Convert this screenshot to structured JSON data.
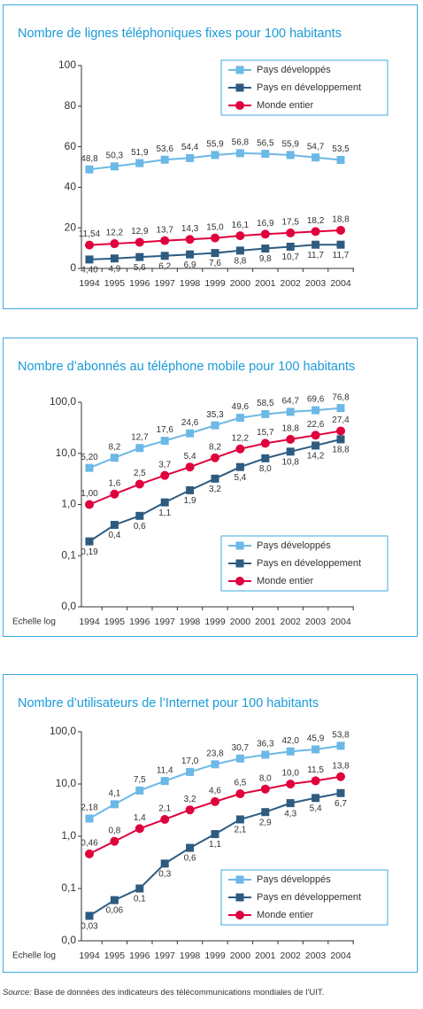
{
  "chart_data": [
    {
      "type": "line",
      "title": "Nombre de lignes téléphoniques fixes pour 100 habitants",
      "categories": [
        "1994",
        "1995",
        "1996",
        "1997",
        "1998",
        "1999",
        "2000",
        "2001",
        "2002",
        "2003",
        "2004"
      ],
      "ylim": [
        0,
        100
      ],
      "yticks": [
        0,
        20,
        40,
        60,
        80,
        100
      ],
      "log_scale": false,
      "grid": false,
      "legend": "top-right",
      "series": [
        {
          "name": "Pays développés",
          "color": "#6cb8e6",
          "marker": "square",
          "values": [
            48.8,
            50.3,
            51.9,
            53.6,
            54.4,
            55.9,
            56.8,
            56.5,
            55.9,
            54.7,
            53.5
          ],
          "value_labels": [
            "48,8",
            "50,3",
            "51,9",
            "53,6",
            "54,4",
            "55,9",
            "56,8",
            "56,5",
            "55,9",
            "54,7",
            "53,5"
          ]
        },
        {
          "name": "Pays en développement",
          "color": "#2e5b80",
          "marker": "square",
          "values": [
            4.4,
            4.9,
            5.6,
            6.2,
            6.9,
            7.6,
            8.8,
            9.8,
            10.7,
            11.7,
            11.7
          ],
          "value_labels": [
            "4,40",
            "4,9",
            "5,6",
            "6,2",
            "6,9",
            "7,6",
            "8,8",
            "9,8",
            "10,7",
            "11,7",
            "11,7"
          ]
        },
        {
          "name": "Monde entier",
          "color": "#e0003c",
          "marker": "circle",
          "values": [
            11.54,
            12.2,
            12.9,
            13.7,
            14.3,
            15.0,
            16.1,
            16.9,
            17.5,
            18.2,
            18.8
          ],
          "value_labels": [
            "11,54",
            "12,2",
            "12,9",
            "13,7",
            "14,3",
            "15,0",
            "16,1",
            "16,9",
            "17,5",
            "18,2",
            "18,8"
          ]
        }
      ]
    },
    {
      "type": "line",
      "title": "Nombre d’abonnés au téléphone mobile pour 100 habitants",
      "categories": [
        "1994",
        "1995",
        "1996",
        "1997",
        "1998",
        "1999",
        "2000",
        "2001",
        "2002",
        "2003",
        "2004"
      ],
      "ylim": [
        0.01,
        100
      ],
      "yticks": [
        {
          "value": 0.01,
          "label": "0,0"
        },
        {
          "value": 0.1,
          "label": "0,1"
        },
        {
          "value": 1,
          "label": "1,0"
        },
        {
          "value": 10,
          "label": "10,0"
        },
        {
          "value": 100,
          "label": "100,0"
        }
      ],
      "log_scale": true,
      "scale_note": "Echelle log",
      "grid": false,
      "legend": "bottom-right",
      "series": [
        {
          "name": "Pays développés",
          "color": "#6cb8e6",
          "marker": "square",
          "values": [
            5.2,
            8.2,
            12.7,
            17.6,
            24.6,
            35.3,
            49.6,
            58.5,
            64.7,
            69.6,
            76.8
          ],
          "value_labels": [
            "5,20",
            "8,2",
            "12,7",
            "17,6",
            "24,6",
            "35,3",
            "49,6",
            "58,5",
            "64,7",
            "69,6",
            "76,8"
          ]
        },
        {
          "name": "Pays en développement",
          "color": "#2e5b80",
          "marker": "square",
          "values": [
            0.19,
            0.4,
            0.6,
            1.1,
            1.9,
            3.2,
            5.4,
            8.0,
            10.8,
            14.2,
            18.8
          ],
          "value_labels": [
            "0,19",
            "0,4",
            "0,6",
            "1,1",
            "1,9",
            "3,2",
            "5,4",
            "8,0",
            "10,8",
            "14,2",
            "18,8"
          ]
        },
        {
          "name": "Monde entier",
          "color": "#e0003c",
          "marker": "circle",
          "values": [
            1.0,
            1.6,
            2.5,
            3.7,
            5.4,
            8.2,
            12.2,
            15.7,
            18.8,
            22.6,
            27.4
          ],
          "value_labels": [
            "1,00",
            "1,6",
            "2,5",
            "3,7",
            "5,4",
            "8,2",
            "12,2",
            "15,7",
            "18,8",
            "22,6",
            "27,4"
          ]
        }
      ]
    },
    {
      "type": "line",
      "title": "Nombre d’utilisateurs de l’Internet pour 100 habitants",
      "categories": [
        "1994",
        "1995",
        "1996",
        "1997",
        "1998",
        "1999",
        "2000",
        "2001",
        "2002",
        "2003",
        "2004"
      ],
      "ylim": [
        0.01,
        100
      ],
      "yticks": [
        {
          "value": 0.01,
          "label": "0,0"
        },
        {
          "value": 0.1,
          "label": "0,1"
        },
        {
          "value": 1,
          "label": "1,0"
        },
        {
          "value": 10,
          "label": "10,0"
        },
        {
          "value": 100,
          "label": "100,0"
        }
      ],
      "log_scale": true,
      "scale_note": "Echelle log",
      "grid": false,
      "legend": "bottom-right",
      "series": [
        {
          "name": "Pays développés",
          "color": "#6cb8e6",
          "marker": "square",
          "values": [
            2.18,
            4.1,
            7.5,
            11.4,
            17.0,
            23.8,
            30.7,
            36.3,
            42.0,
            45.9,
            53.8
          ],
          "value_labels": [
            "2,18",
            "4,1",
            "7,5",
            "11,4",
            "17,0",
            "23,8",
            "30,7",
            "36,3",
            "42,0",
            "45,9",
            "53,8"
          ]
        },
        {
          "name": "Pays en développement",
          "color": "#2e5b80",
          "marker": "square",
          "values": [
            0.03,
            0.06,
            0.1,
            0.3,
            0.6,
            1.1,
            2.1,
            2.9,
            4.3,
            5.4,
            6.7
          ],
          "value_labels": [
            "0,03",
            "0,06",
            "0,1",
            "0,3",
            "0,6",
            "1,1",
            "2,1",
            "2,9",
            "4,3",
            "5,4",
            "6,7"
          ]
        },
        {
          "name": "Monde entier",
          "color": "#e0003c",
          "marker": "circle",
          "values": [
            0.46,
            0.8,
            1.4,
            2.1,
            3.2,
            4.6,
            6.5,
            8.0,
            10.0,
            11.5,
            13.8
          ],
          "value_labels": [
            "0,46",
            "0,8",
            "1,4",
            "2,1",
            "3,2",
            "4,6",
            "6,5",
            "8,0",
            "10,0",
            "11,5",
            "13,8"
          ]
        }
      ]
    }
  ],
  "source_label": "Source:",
  "source_text": "Base de données des indicateurs des télécommunications mondiales de l’UIT."
}
